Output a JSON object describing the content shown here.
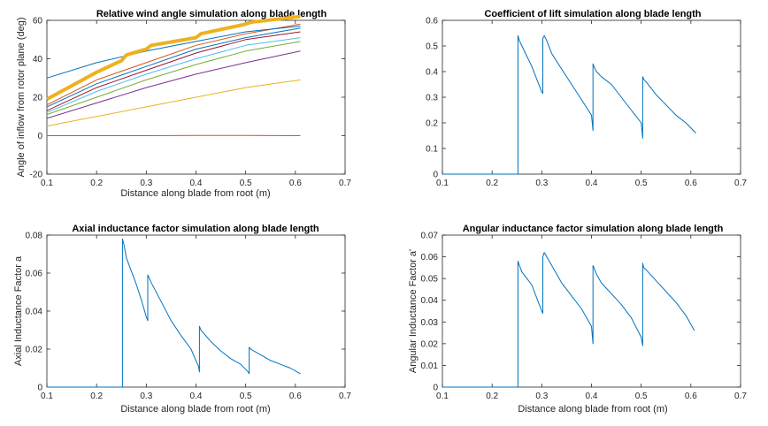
{
  "chart_data": [
    {
      "type": "line",
      "title": "Relative wind angle simulation along blade length",
      "xlabel": "Distance along blade from root (m)",
      "ylabel": "Angle of inflow from rotor plane (deg)",
      "xlim": [
        0.1,
        0.7
      ],
      "ylim": [
        -20,
        60
      ],
      "xticks": [
        "0.1",
        "0.2",
        "0.3",
        "0.4",
        "0.5",
        "0.6",
        "0.7"
      ],
      "yticks": [
        "-20",
        "0",
        "20",
        "40",
        "60"
      ],
      "grid": false,
      "series_description": "family of curves from 0.1 to 0.61 m",
      "colors": [
        "#0072BD",
        "#D95319",
        "#EDB120",
        "#7E2F8E",
        "#77AC30",
        "#4DBEEE",
        "#A2142F"
      ],
      "series": [
        {
          "x": [
            0.1,
            0.2,
            0.3,
            0.4,
            0.5,
            0.61
          ],
          "y": [
            0.0,
            0.0,
            0.0,
            0.1,
            0.1,
            0.0
          ]
        },
        {
          "x": [
            0.1,
            0.2,
            0.3,
            0.4,
            0.5,
            0.61
          ],
          "y": [
            5,
            10,
            15,
            20,
            25,
            29
          ]
        },
        {
          "x": [
            0.1,
            0.2,
            0.3,
            0.4,
            0.5,
            0.61
          ],
          "y": [
            9,
            17,
            25,
            32,
            38,
            44
          ]
        },
        {
          "x": [
            0.1,
            0.2,
            0.3,
            0.4,
            0.5,
            0.61
          ],
          "y": [
            11,
            20,
            29,
            37,
            44,
            49
          ]
        },
        {
          "x": [
            0.1,
            0.2,
            0.3,
            0.4,
            0.5,
            0.61
          ],
          "y": [
            12,
            23,
            32,
            40,
            47,
            51
          ]
        },
        {
          "x": [
            0.1,
            0.2,
            0.3,
            0.4,
            0.5,
            0.61
          ],
          "y": [
            13,
            25,
            34,
            43,
            50,
            54
          ]
        },
        {
          "x": [
            0.1,
            0.2,
            0.3,
            0.4,
            0.5,
            0.61
          ],
          "y": [
            15,
            27,
            36,
            45,
            51,
            56
          ]
        },
        {
          "x": [
            0.1,
            0.2,
            0.3,
            0.4,
            0.5,
            0.61
          ],
          "y": [
            16,
            29,
            38,
            47,
            53,
            58
          ]
        },
        {
          "x": [
            0.1,
            0.2,
            0.3,
            0.4,
            0.5,
            0.61
          ],
          "y": [
            30,
            38,
            44,
            49,
            54,
            57
          ]
        },
        {
          "x": [
            0.1,
            0.15,
            0.2,
            0.25,
            0.26,
            0.3,
            0.31,
            0.4,
            0.41,
            0.5,
            0.51,
            0.61
          ],
          "y": [
            19,
            26,
            33,
            39,
            42,
            45,
            47,
            51,
            53,
            58,
            59,
            62
          ],
          "width": 4,
          "color": "#EDB120"
        }
      ]
    },
    {
      "type": "line",
      "title": "Coefficient of lift simulation along blade length",
      "xlabel": "",
      "ylabel": "",
      "xlim": [
        0.1,
        0.7
      ],
      "ylim": [
        0,
        0.6
      ],
      "xticks": [
        "0.1",
        "0.2",
        "0.3",
        "0.4",
        "0.5",
        "0.6",
        "0.7"
      ],
      "yticks": [
        "0",
        "0.1",
        "0.2",
        "0.3",
        "0.4",
        "0.5",
        "0.6"
      ],
      "series": [
        {
          "x": [
            0.1,
            0.252,
            0.252,
            0.255,
            0.26,
            0.27,
            0.28,
            0.29,
            0.3,
            0.302,
            0.302,
            0.305,
            0.31,
            0.32,
            0.34,
            0.36,
            0.38,
            0.4,
            0.403,
            0.403,
            0.405,
            0.41,
            0.42,
            0.44,
            0.46,
            0.48,
            0.5,
            0.503,
            0.503,
            0.505,
            0.51,
            0.53,
            0.55,
            0.57,
            0.59,
            0.61
          ],
          "y": [
            0,
            0,
            0.54,
            0.52,
            0.5,
            0.46,
            0.42,
            0.37,
            0.32,
            0.315,
            0.53,
            0.54,
            0.52,
            0.47,
            0.41,
            0.35,
            0.29,
            0.23,
            0.17,
            0.43,
            0.42,
            0.4,
            0.38,
            0.35,
            0.3,
            0.25,
            0.2,
            0.14,
            0.38,
            0.37,
            0.36,
            0.31,
            0.27,
            0.23,
            0.2,
            0.16
          ]
        }
      ]
    },
    {
      "type": "line",
      "title": "Axial inductance factor simulation along blade length",
      "xlabel": "Distance along blade from root (m)",
      "ylabel": "Axial Inductance Factor a",
      "xlim": [
        0.1,
        0.7
      ],
      "ylim": [
        0,
        0.08
      ],
      "xticks": [
        "0.1",
        "0.2",
        "0.3",
        "0.4",
        "0.5",
        "0.6",
        "0.7"
      ],
      "yticks": [
        "0",
        "0.02",
        "0.04",
        "0.06",
        "0.08"
      ],
      "series": [
        {
          "x": [
            0.1,
            0.252,
            0.252,
            0.255,
            0.26,
            0.27,
            0.28,
            0.29,
            0.3,
            0.303,
            0.303,
            0.305,
            0.31,
            0.33,
            0.35,
            0.37,
            0.39,
            0.405,
            0.407,
            0.407,
            0.41,
            0.43,
            0.45,
            0.47,
            0.49,
            0.505,
            0.507,
            0.507,
            0.51,
            0.53,
            0.55,
            0.57,
            0.59,
            0.61
          ],
          "y": [
            0,
            0,
            0.078,
            0.075,
            0.068,
            0.061,
            0.054,
            0.046,
            0.037,
            0.035,
            0.059,
            0.058,
            0.055,
            0.045,
            0.035,
            0.027,
            0.02,
            0.011,
            0.008,
            0.032,
            0.03,
            0.024,
            0.019,
            0.015,
            0.012,
            0.008,
            0.007,
            0.021,
            0.02,
            0.017,
            0.014,
            0.012,
            0.01,
            0.007
          ]
        }
      ]
    },
    {
      "type": "line",
      "title": "Angular inductance factor simulation along blade length",
      "xlabel": "Distance along blade from root (m)",
      "ylabel": "Angular Inductance Factor a'",
      "xlim": [
        0.1,
        0.7
      ],
      "ylim": [
        0,
        0.07
      ],
      "xticks": [
        "0.1",
        "0.2",
        "0.3",
        "0.4",
        "0.5",
        "0.6",
        "0.7"
      ],
      "yticks": [
        "0",
        "0.01",
        "0.02",
        "0.03",
        "0.04",
        "0.05",
        "0.06",
        "0.07"
      ],
      "series": [
        {
          "x": [
            0.1,
            0.252,
            0.252,
            0.255,
            0.26,
            0.27,
            0.28,
            0.29,
            0.3,
            0.302,
            0.302,
            0.305,
            0.31,
            0.32,
            0.34,
            0.36,
            0.38,
            0.4,
            0.403,
            0.403,
            0.405,
            0.41,
            0.42,
            0.44,
            0.46,
            0.48,
            0.5,
            0.503,
            0.503,
            0.505,
            0.51,
            0.53,
            0.55,
            0.57,
            0.59,
            0.607
          ],
          "y": [
            0,
            0,
            0.058,
            0.056,
            0.053,
            0.05,
            0.047,
            0.041,
            0.035,
            0.034,
            0.06,
            0.062,
            0.06,
            0.056,
            0.048,
            0.042,
            0.036,
            0.028,
            0.02,
            0.056,
            0.055,
            0.052,
            0.048,
            0.043,
            0.038,
            0.032,
            0.023,
            0.019,
            0.057,
            0.055,
            0.054,
            0.049,
            0.044,
            0.039,
            0.033,
            0.026
          ]
        }
      ]
    }
  ]
}
